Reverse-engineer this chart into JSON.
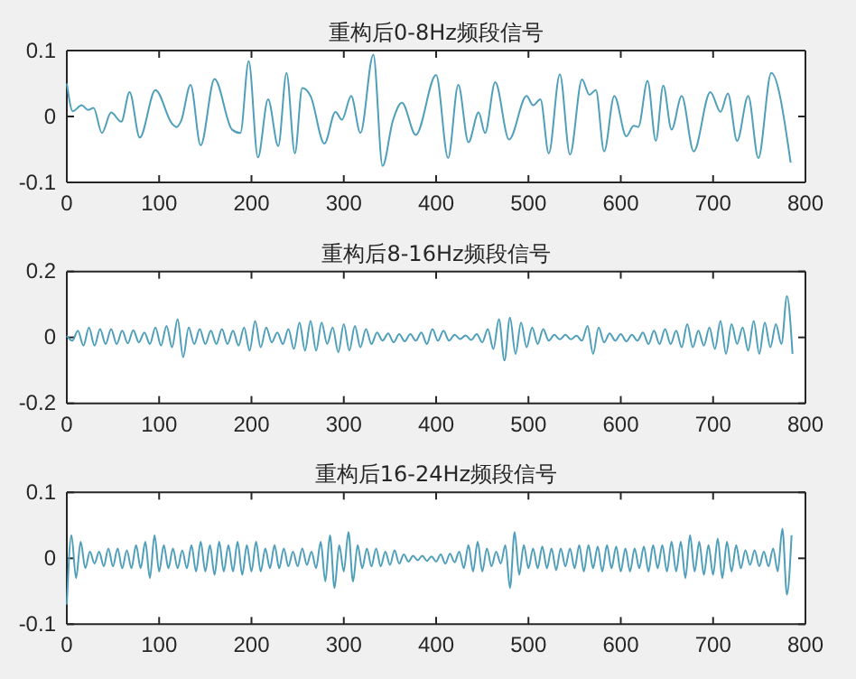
{
  "chart_data": [
    {
      "type": "line",
      "title": "重构后0-8Hz频段信号",
      "xlim": [
        0,
        800
      ],
      "xticks": [
        0,
        100,
        200,
        300,
        400,
        500,
        600,
        700,
        800
      ],
      "ylim": [
        -0.1,
        0.1
      ],
      "yticks": [
        -0.1,
        0,
        0.1
      ],
      "series": [
        {
          "color": "#4f9fba",
          "x": [
            0,
            6.5,
            16,
            23,
            29,
            38,
            48,
            59,
            68,
            79,
            96,
            114,
            119,
            124,
            134,
            145,
            160,
            179,
            188,
            197,
            207,
            218,
            229,
            238,
            247,
            255,
            264,
            279,
            291,
            298,
            308,
            318,
            332,
            342,
            353,
            363,
            378,
            400,
            413,
            424,
            435,
            446,
            453,
            464,
            479,
            498,
            505,
            513,
            522,
            534,
            545,
            558,
            566,
            573,
            582,
            593,
            606,
            614,
            619,
            629,
            638,
            646,
            655,
            666,
            679,
            697,
            708,
            716,
            726,
            738,
            749,
            763,
            784
          ],
          "values": [
            0.05,
            0.008,
            0.017,
            0.01,
            0.013,
            -0.025,
            0.006,
            -0.008,
            0.037,
            -0.032,
            0.04,
            -0.011,
            -0.016,
            -0.006,
            0.048,
            -0.044,
            0.057,
            -0.02,
            -0.025,
            0.084,
            -0.062,
            0.026,
            -0.045,
            0.066,
            -0.056,
            0.043,
            0.031,
            -0.041,
            0.007,
            -0.005,
            0.031,
            -0.025,
            0.094,
            -0.075,
            -0.007,
            0.021,
            -0.028,
            0.063,
            -0.063,
            0.048,
            -0.039,
            0.006,
            -0.025,
            0.052,
            -0.035,
            0.031,
            0.017,
            0.026,
            -0.056,
            0.064,
            -0.058,
            0.056,
            0.033,
            0.04,
            -0.053,
            0.031,
            -0.03,
            -0.014,
            -0.016,
            0.054,
            -0.037,
            0.047,
            -0.02,
            0.031,
            -0.053,
            0.037,
            0.007,
            0.035,
            -0.037,
            0.031,
            -0.063,
            0.066,
            -0.07
          ]
        }
      ]
    },
    {
      "type": "line",
      "title": "重构后8-16Hz频段信号",
      "xlim": [
        0,
        800
      ],
      "xticks": [
        0,
        100,
        200,
        300,
        400,
        500,
        600,
        700,
        800
      ],
      "ylim": [
        -0.2,
        0.2
      ],
      "yticks": [
        -0.2,
        0,
        0.2
      ],
      "series": [
        {
          "color": "#4f9fba",
          "x": [
            0,
            6,
            12,
            18,
            24,
            30,
            36,
            42,
            48,
            54,
            60,
            66,
            72,
            78,
            84,
            90,
            96,
            102,
            108,
            114,
            120,
            126,
            132,
            138,
            144,
            150,
            156,
            162,
            168,
            174,
            180,
            186,
            192,
            198,
            204,
            210,
            216,
            222,
            228,
            234,
            240,
            246,
            252,
            258,
            264,
            270,
            276,
            282,
            288,
            294,
            300,
            306,
            312,
            318,
            324,
            330,
            336,
            342,
            348,
            354,
            360,
            366,
            372,
            378,
            384,
            390,
            396,
            402,
            408,
            414,
            420,
            426,
            432,
            438,
            444,
            450,
            456,
            462,
            468,
            474,
            480,
            486,
            492,
            498,
            504,
            510,
            516,
            522,
            528,
            534,
            540,
            546,
            552,
            558,
            564,
            570,
            576,
            582,
            588,
            594,
            600,
            606,
            612,
            618,
            624,
            630,
            636,
            642,
            648,
            654,
            660,
            666,
            672,
            678,
            684,
            690,
            696,
            702,
            708,
            714,
            720,
            726,
            732,
            738,
            744,
            750,
            756,
            762,
            768,
            774,
            780,
            786
          ],
          "values": [
            0.005,
            -0.01,
            0.02,
            -0.025,
            0.03,
            -0.025,
            0.025,
            -0.02,
            0.025,
            -0.02,
            0.02,
            -0.018,
            0.022,
            -0.015,
            0.015,
            -0.02,
            0.03,
            -0.025,
            0.035,
            -0.03,
            0.055,
            -0.06,
            0.03,
            -0.02,
            0.025,
            -0.02,
            0.02,
            -0.02,
            0.025,
            -0.02,
            0.02,
            -0.025,
            0.03,
            -0.04,
            0.05,
            -0.03,
            0.03,
            -0.015,
            0.015,
            -0.02,
            0.025,
            -0.035,
            0.045,
            -0.04,
            0.05,
            -0.04,
            0.045,
            -0.02,
            0.03,
            -0.045,
            0.04,
            -0.04,
            0.035,
            -0.03,
            0.025,
            -0.02,
            0.015,
            -0.01,
            0.012,
            -0.015,
            0.01,
            -0.012,
            0.01,
            -0.01,
            0.015,
            -0.02,
            0.025,
            -0.01,
            0.02,
            -0.01,
            0.008,
            -0.005,
            0.006,
            -0.008,
            0.01,
            -0.015,
            0.025,
            -0.035,
            0.055,
            -0.07,
            0.06,
            -0.05,
            0.045,
            -0.03,
            0.03,
            -0.02,
            0.025,
            -0.01,
            0.008,
            -0.006,
            0.008,
            -0.006,
            0.005,
            -0.01,
            0.035,
            -0.05,
            0.03,
            -0.015,
            0.012,
            -0.01,
            0.01,
            -0.012,
            0.008,
            -0.01,
            0.015,
            -0.02,
            0.02,
            -0.02,
            0.025,
            -0.02,
            0.02,
            -0.03,
            0.04,
            -0.03,
            0.02,
            -0.025,
            0.03,
            -0.035,
            0.05,
            -0.05,
            0.04,
            -0.02,
            0.03,
            -0.04,
            0.05,
            -0.05,
            0.045,
            -0.03,
            0.04,
            -0.02,
            0.125,
            -0.05
          ]
        }
      ]
    },
    {
      "type": "line",
      "title": "重构后16-24Hz频段信号",
      "xlim": [
        0,
        800
      ],
      "xticks": [
        0,
        100,
        200,
        300,
        400,
        500,
        600,
        700,
        800
      ],
      "ylim": [
        -0.1,
        0.1
      ],
      "yticks": [
        -0.1,
        0,
        0.1
      ],
      "series": [
        {
          "color": "#4f9fba",
          "x": [
            0,
            5,
            10,
            15,
            20,
            25,
            30,
            35,
            40,
            45,
            50,
            55,
            60,
            65,
            70,
            75,
            80,
            85,
            90,
            95,
            100,
            105,
            110,
            115,
            120,
            125,
            130,
            135,
            140,
            145,
            150,
            155,
            160,
            165,
            170,
            175,
            180,
            185,
            190,
            195,
            200,
            205,
            210,
            215,
            220,
            225,
            230,
            235,
            240,
            245,
            250,
            255,
            260,
            265,
            270,
            275,
            280,
            285,
            290,
            295,
            300,
            305,
            310,
            315,
            320,
            325,
            330,
            335,
            340,
            345,
            350,
            355,
            360,
            365,
            370,
            375,
            380,
            385,
            390,
            395,
            400,
            405,
            410,
            415,
            420,
            425,
            430,
            435,
            440,
            445,
            450,
            455,
            460,
            465,
            470,
            475,
            480,
            485,
            490,
            495,
            500,
            505,
            510,
            515,
            520,
            525,
            530,
            535,
            540,
            545,
            550,
            555,
            560,
            565,
            570,
            575,
            580,
            585,
            590,
            595,
            600,
            605,
            610,
            615,
            620,
            625,
            630,
            635,
            640,
            645,
            650,
            655,
            660,
            665,
            670,
            675,
            680,
            685,
            690,
            695,
            700,
            705,
            710,
            715,
            720,
            725,
            730,
            735,
            740,
            745,
            750,
            755,
            760,
            765,
            770,
            775,
            780,
            785
          ],
          "values": [
            -0.07,
            0.035,
            -0.03,
            0.025,
            -0.015,
            0.01,
            -0.008,
            0.01,
            -0.012,
            0.015,
            -0.012,
            0.015,
            -0.015,
            0.012,
            -0.015,
            0.02,
            -0.015,
            0.025,
            -0.03,
            0.035,
            -0.02,
            0.02,
            -0.015,
            0.015,
            -0.015,
            0.012,
            -0.015,
            0.02,
            -0.02,
            0.025,
            -0.02,
            0.02,
            -0.025,
            0.025,
            -0.02,
            0.02,
            -0.02,
            0.025,
            -0.025,
            0.02,
            -0.02,
            0.025,
            -0.02,
            0.015,
            -0.015,
            0.02,
            -0.015,
            0.015,
            -0.012,
            0.01,
            -0.012,
            0.015,
            -0.01,
            0.01,
            -0.015,
            0.025,
            -0.035,
            0.035,
            -0.045,
            0.02,
            -0.02,
            0.04,
            -0.035,
            0.02,
            -0.015,
            0.015,
            -0.012,
            0.015,
            -0.012,
            0.01,
            -0.01,
            0.012,
            -0.008,
            0.006,
            -0.005,
            0.004,
            -0.003,
            0.004,
            -0.004,
            0.003,
            -0.005,
            0.006,
            -0.008,
            0.007,
            -0.006,
            0.01,
            -0.015,
            0.02,
            -0.02,
            0.025,
            -0.02,
            0.015,
            -0.012,
            0.01,
            -0.008,
            0.02,
            -0.045,
            0.04,
            -0.025,
            0.02,
            -0.015,
            0.015,
            -0.015,
            0.018,
            -0.015,
            0.015,
            -0.018,
            0.015,
            -0.012,
            0.015,
            -0.015,
            0.02,
            -0.02,
            0.02,
            -0.015,
            0.018,
            -0.02,
            0.02,
            -0.015,
            0.018,
            -0.02,
            0.015,
            -0.02,
            0.015,
            -0.015,
            0.018,
            -0.02,
            0.02,
            -0.015,
            0.02,
            -0.02,
            0.025,
            -0.02,
            0.025,
            -0.03,
            0.035,
            -0.02,
            0.025,
            -0.025,
            0.02,
            -0.025,
            0.03,
            -0.03,
            0.025,
            -0.02,
            0.02,
            -0.015,
            0.012,
            -0.01,
            0.012,
            -0.012,
            0.01,
            -0.012,
            0.015,
            -0.02,
            0.045,
            -0.055,
            0.035
          ]
        }
      ]
    }
  ]
}
